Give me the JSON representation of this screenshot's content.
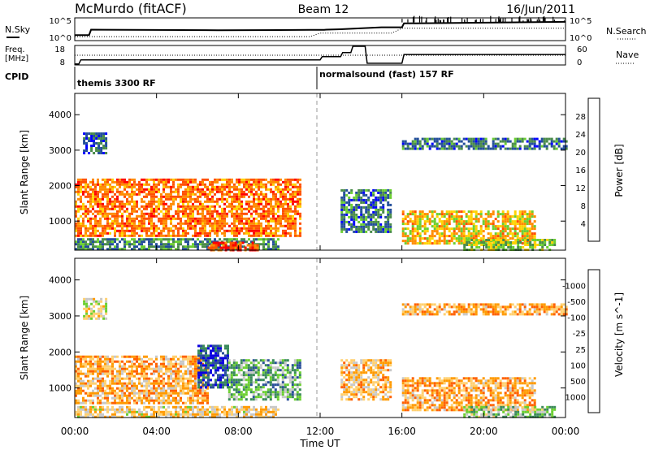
{
  "header": {
    "station": "McMurdo (fitACF)",
    "beam": "Beam 12",
    "date": "16/Jun/2011"
  },
  "noise_panel": {
    "left_label": "N.Sky",
    "right_label": "N.Search",
    "left_ticks": [
      "10^5",
      "10^0"
    ],
    "right_ticks": [
      "10^5",
      "10^0"
    ]
  },
  "freq_panel": {
    "left_label_1": "Freq.",
    "left_label_2": "[MHz]",
    "right_label": "Nave",
    "left_ticks": [
      "18",
      "8"
    ],
    "right_ticks": [
      "60",
      "0"
    ]
  },
  "cpid": {
    "label": "CPID",
    "programs": [
      {
        "name": "themis 3300 RF",
        "start_hour": 0
      },
      {
        "name": "normalsound (fast) 157 RF",
        "start_hour": 12
      }
    ]
  },
  "x_axis": {
    "label": "Time UT",
    "ticks": [
      "00:00",
      "04:00",
      "08:00",
      "12:00",
      "16:00",
      "20:00",
      "00:00"
    ]
  },
  "colors": {
    "power_scale": [
      "#0000ff",
      "#234e9b",
      "#4a8c4a",
      "#6bcf30",
      "#ffd200",
      "#ff8c00",
      "#ff5000",
      "#ff0000"
    ],
    "velocity_scale": [
      "#ff0000",
      "#ff6000",
      "#ff9a00",
      "#ffd070",
      "#c8c8c8",
      "#6bcf30",
      "#3a8a5a",
      "#2a4f9a",
      "#0a00e0"
    ]
  },
  "chart_data": [
    {
      "type": "line",
      "title": "",
      "xlabel": "",
      "ylabel": "N.Sky",
      "x_unit": "hours UT",
      "xlim": [
        0,
        24
      ],
      "series": [
        {
          "x": [
            0.0,
            0.7,
            0.8,
            7.0,
            10.0,
            12.0,
            12.2,
            12.3,
            13.0,
            15.0,
            16.0,
            16.1,
            24.0
          ],
          "values": [
            0.2,
            0.2,
            0.48,
            0.45,
            0.46,
            0.47,
            0.47,
            0.48,
            0.5,
            0.6,
            0.6,
            0.8,
            0.88
          ]
        }
      ]
    },
    {
      "type": "line",
      "title": "",
      "xlabel": "",
      "ylabel": "Freq. [MHz]",
      "xlim": [
        0,
        24
      ],
      "ylim": [
        8,
        18
      ],
      "series": [
        {
          "x": [
            0.0,
            0.2,
            0.3,
            12.0,
            12.1,
            13.0,
            13.1,
            13.5,
            13.6,
            14.2,
            14.3,
            16.0,
            16.1,
            24.0
          ],
          "values": [
            8.1,
            8.1,
            10.4,
            10.4,
            12.2,
            12.2,
            14.5,
            14.5,
            18.2,
            18.2,
            8.5,
            8.5,
            13.4,
            13.4
          ]
        }
      ]
    },
    {
      "type": "heatmap",
      "title": "",
      "xlabel": "",
      "ylabel": "Slant Range [km]",
      "colorbar_label": "Power [dB]",
      "colorbar_ticks": [
        "4",
        "8",
        "12",
        "16",
        "20",
        "24",
        "28"
      ],
      "y_ticks": [
        "1000",
        "2000",
        "3000",
        "4000"
      ],
      "xlim": [
        0,
        24
      ],
      "ylim": [
        180,
        4600
      ],
      "regions": [
        {
          "x0": 0.0,
          "x1": 11.0,
          "y0": 600,
          "y1": 2200,
          "level": 0.75
        },
        {
          "x0": 0.0,
          "x1": 10.0,
          "y0": 180,
          "y1": 520,
          "level": 0.3
        },
        {
          "x0": 6.5,
          "x1": 9.0,
          "y0": 180,
          "y1": 420,
          "level": 0.85
        },
        {
          "x0": 0.4,
          "x1": 1.5,
          "y0": 2900,
          "y1": 3500,
          "level": 0.2
        },
        {
          "x0": 13.0,
          "x1": 15.5,
          "y0": 700,
          "y1": 1900,
          "level": 0.25
        },
        {
          "x0": 16.0,
          "x1": 22.5,
          "y0": 400,
          "y1": 1300,
          "level": 0.6
        },
        {
          "x0": 16.0,
          "x1": 24.0,
          "y0": 3050,
          "y1": 3350,
          "level": 0.25
        },
        {
          "x0": 19.0,
          "x1": 23.5,
          "y0": 180,
          "y1": 500,
          "level": 0.45
        }
      ]
    },
    {
      "type": "heatmap",
      "title": "",
      "xlabel": "Time UT",
      "ylabel": "Slant Range [km]",
      "colorbar_label": "Velocity [m s^-1]",
      "colorbar_ticks": [
        "1000",
        "500",
        "100",
        "25",
        "-25",
        "-100",
        "-500",
        "-1000"
      ],
      "y_ticks": [
        "1000",
        "2000",
        "3000",
        "4000"
      ],
      "xlim": [
        0,
        24
      ],
      "ylim": [
        180,
        4600
      ],
      "regions": [
        {
          "x0": 0.0,
          "x1": 6.5,
          "y0": 600,
          "y1": 1900,
          "level": 0.32
        },
        {
          "x0": 6.0,
          "x1": 7.5,
          "y0": 1000,
          "y1": 2200,
          "level": 0.85
        },
        {
          "x0": 7.5,
          "x1": 11.0,
          "y0": 700,
          "y1": 1800,
          "level": 0.65
        },
        {
          "x0": 0.0,
          "x1": 10.0,
          "y0": 180,
          "y1": 500,
          "level": 0.4
        },
        {
          "x0": 0.4,
          "x1": 1.5,
          "y0": 2900,
          "y1": 3500,
          "level": 0.45
        },
        {
          "x0": 13.0,
          "x1": 15.5,
          "y0": 700,
          "y1": 1800,
          "level": 0.35
        },
        {
          "x0": 16.0,
          "x1": 22.5,
          "y0": 400,
          "y1": 1300,
          "level": 0.3
        },
        {
          "x0": 16.0,
          "x1": 24.0,
          "y0": 3050,
          "y1": 3350,
          "level": 0.3
        },
        {
          "x0": 19.0,
          "x1": 23.5,
          "y0": 180,
          "y1": 500,
          "level": 0.6
        }
      ]
    }
  ]
}
